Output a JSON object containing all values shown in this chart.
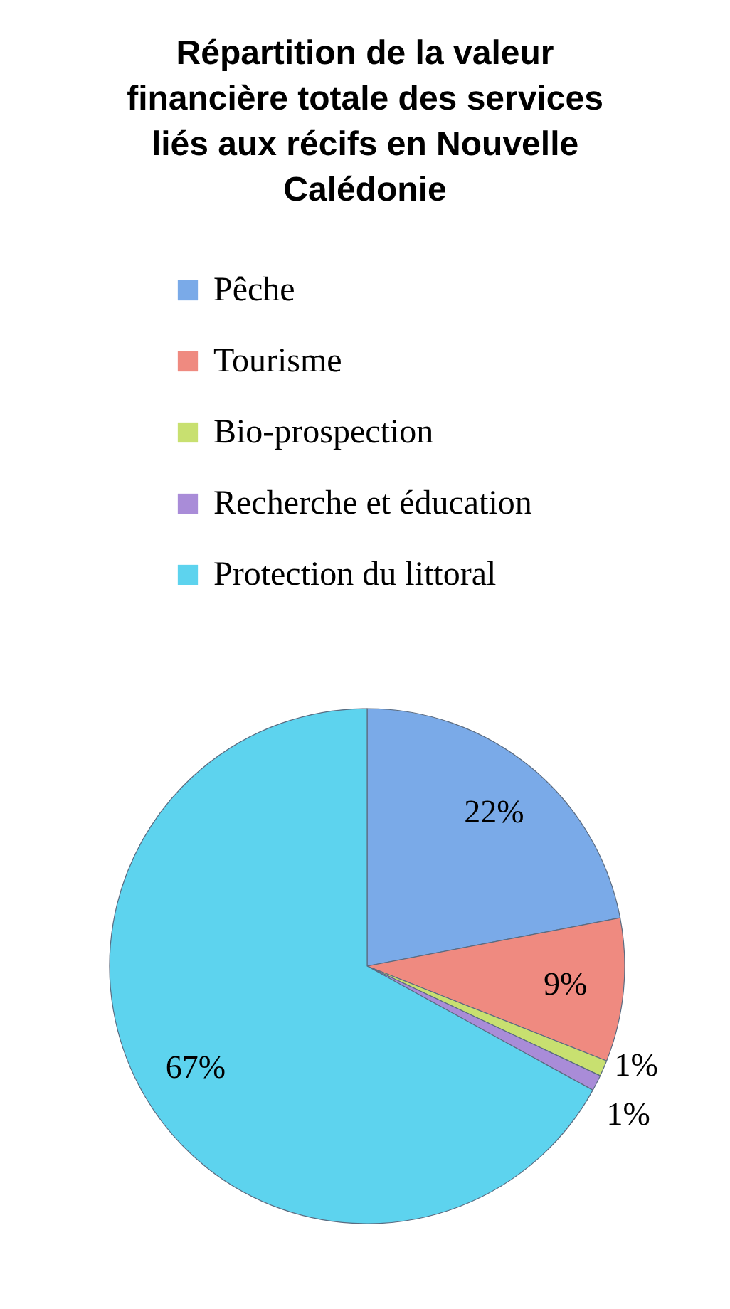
{
  "chart_data": {
    "type": "pie",
    "title": "Répartition de la valeur financière totale des services liés aux récifs en Nouvelle Calédonie",
    "categories": [
      "Pêche",
      "Tourisme",
      "Bio-prospection",
      "Recherche et éducation",
      "Protection du littoral"
    ],
    "values": [
      22,
      9,
      1,
      1,
      67
    ],
    "colors": [
      "#7aaae8",
      "#ef8a80",
      "#c8e070",
      "#a98cd8",
      "#5dd3ee"
    ],
    "value_labels": [
      "22%",
      "9%",
      "1%",
      "1%",
      "67%"
    ],
    "legend": "top"
  }
}
